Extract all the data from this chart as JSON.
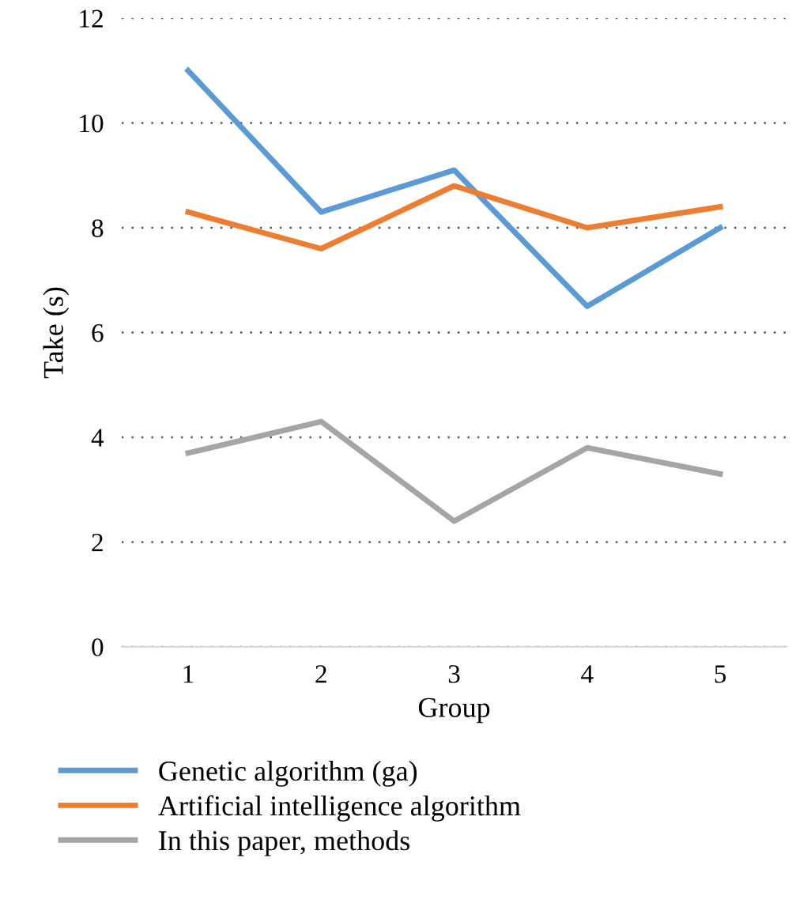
{
  "chart_data": {
    "type": "line",
    "xlabel": "Group",
    "ylabel": "Take (s)",
    "categories": [
      "1",
      "2",
      "3",
      "4",
      "5"
    ],
    "series": [
      {
        "name": "Genetic algorithm (ga)",
        "color": "#5b9bd5",
        "values": [
          11.0,
          8.3,
          9.1,
          6.5,
          8.0
        ]
      },
      {
        "name": "Artificial intelligence algorithm",
        "color": "#ed7d31",
        "values": [
          8.3,
          7.6,
          8.8,
          8.0,
          8.4
        ]
      },
      {
        "name": "In this paper, methods",
        "color": "#a5a5a5",
        "values": [
          3.7,
          4.3,
          2.4,
          3.8,
          3.3
        ]
      }
    ],
    "ylim": [
      0,
      12
    ],
    "yticks": [
      0,
      2,
      4,
      6,
      8,
      10,
      12
    ],
    "grid": "y",
    "legend": "bottom",
    "marker": "none",
    "line_style": "solid"
  }
}
